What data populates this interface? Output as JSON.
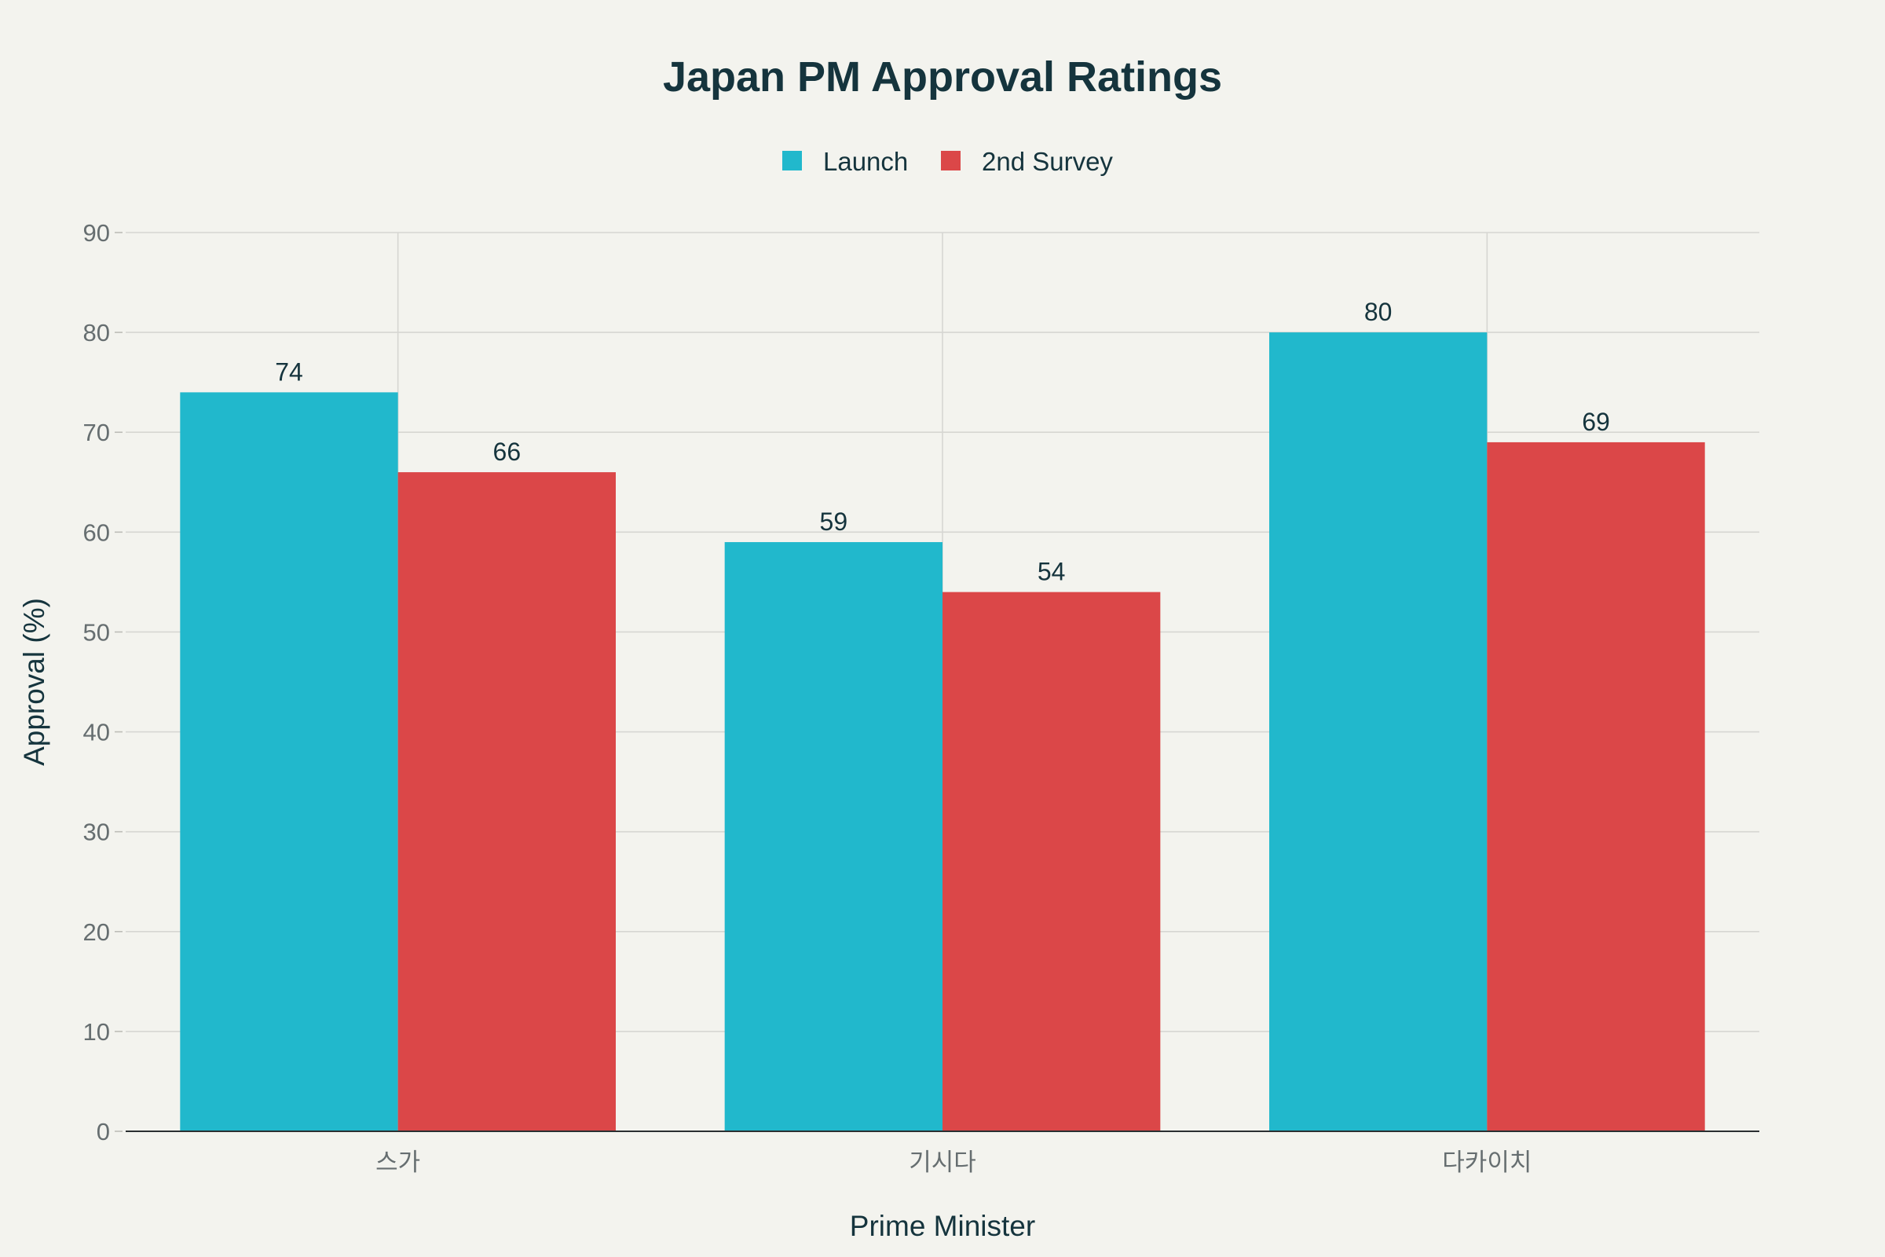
{
  "chart_data": {
    "type": "bar",
    "title": "Japan PM Approval Ratings",
    "xlabel": "Prime Minister",
    "ylabel": "Approval (%)",
    "categories": [
      "스가",
      "기시다",
      "다카이치"
    ],
    "series": [
      {
        "name": "Launch",
        "color": "#21b8cc",
        "values": [
          74,
          59,
          80
        ]
      },
      {
        "name": "2nd Survey",
        "color": "#db4748",
        "values": [
          66,
          54,
          69
        ]
      }
    ],
    "ylim": [
      0,
      90
    ],
    "yticks": [
      0,
      10,
      20,
      30,
      40,
      50,
      60,
      70,
      80,
      90
    ],
    "grid": true,
    "legend_position": "top-center"
  }
}
